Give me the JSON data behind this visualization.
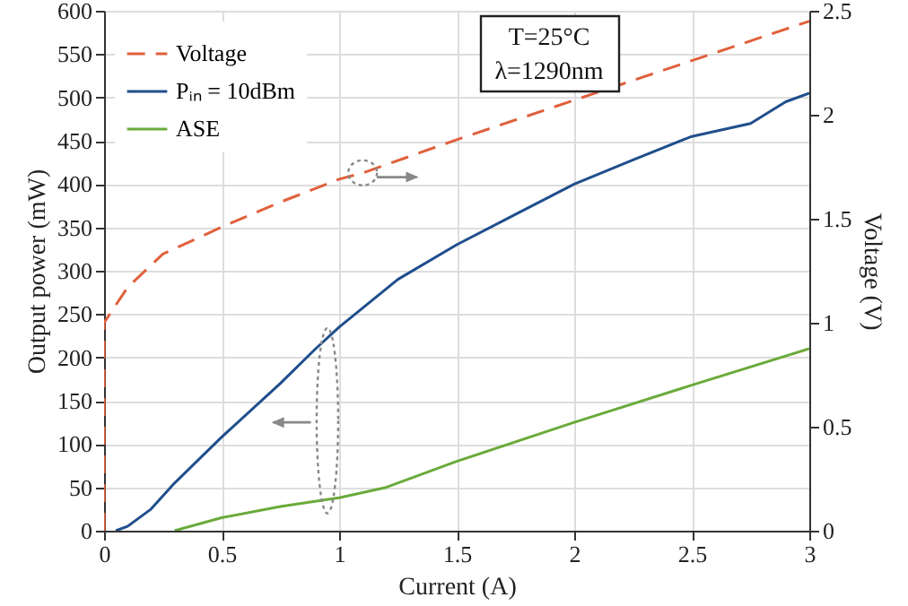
{
  "chart_data": {
    "type": "line",
    "xlabel": "Current (A)",
    "ylabel": "Output power (mW)",
    "y2label": "Voltage (V)",
    "annotations": [
      "T=25°C",
      "λ=1290nm"
    ],
    "xlim": [
      0,
      3
    ],
    "xticks": [
      0,
      0.5,
      1,
      1.5,
      2,
      2.5,
      3
    ],
    "ylim": [
      0,
      600
    ],
    "yticks": [
      0,
      50,
      100,
      150,
      200,
      250,
      300,
      350,
      400,
      450,
      500,
      550,
      600
    ],
    "y2lim": [
      0,
      2.5
    ],
    "y2ticks": [
      0,
      0.5,
      1,
      1.5,
      2,
      2.5
    ],
    "grid": true,
    "legend": "top left",
    "series": [
      {
        "name": "Voltage",
        "color": "#e0603c",
        "axis": "y2",
        "line_style": "dashed",
        "x": [
          0,
          0,
          0.1,
          0.25,
          0.5,
          0.75,
          1.0,
          1.1,
          1.5,
          2.0,
          2.5,
          3.0
        ],
        "values": [
          0,
          1.0,
          1.17,
          1.33,
          1.46,
          1.58,
          1.69,
          1.72,
          1.88,
          2.07,
          2.26,
          2.45
        ]
      },
      {
        "name": "Pᵢₙ = 10dBm",
        "color": "#1f4e8c",
        "line_style": "solid",
        "x": [
          0.05,
          0.1,
          0.2,
          0.3,
          0.5,
          0.75,
          0.9,
          1.0,
          1.25,
          1.5,
          1.75,
          2.0,
          2.25,
          2.5,
          2.75,
          2.9,
          3.0
        ],
        "values": [
          0,
          5,
          25,
          55,
          108,
          170,
          210,
          235,
          290,
          330,
          365,
          400,
          428,
          455,
          470,
          495,
          505
        ]
      },
      {
        "name": "ASE",
        "color": "#6aaa3a",
        "line_style": "solid",
        "x": [
          0.3,
          0.5,
          0.75,
          1.0,
          1.2,
          1.5,
          2.0,
          2.5,
          3.0
        ],
        "values": [
          0,
          15,
          28,
          38,
          50,
          80,
          125,
          168,
          210
        ]
      }
    ]
  }
}
